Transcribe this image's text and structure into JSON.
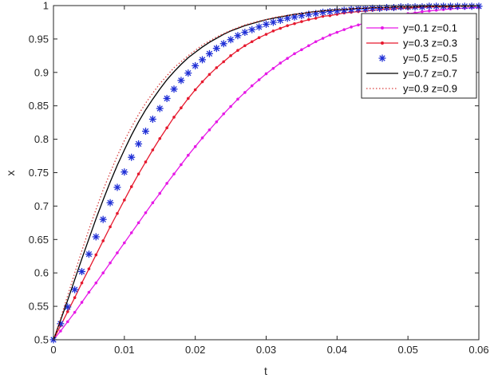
{
  "chart_data": {
    "type": "line",
    "xlabel": "t",
    "ylabel": "x",
    "xlim": [
      0,
      0.06
    ],
    "ylim": [
      0.5,
      1
    ],
    "xticks": [
      0,
      0.01,
      0.02,
      0.03,
      0.04,
      0.05,
      0.06
    ],
    "xtick_labels": [
      "0",
      "0.01",
      "0.02",
      "0.03",
      "0.04",
      "0.05",
      "0.06"
    ],
    "yticks": [
      0.5,
      0.55,
      0.6,
      0.65,
      0.7,
      0.75,
      0.8,
      0.85,
      0.9,
      0.95,
      1
    ],
    "ytick_labels": [
      "0.5",
      "0.55",
      "0.6",
      "0.65",
      "0.7",
      "0.75",
      "0.8",
      "0.85",
      "0.9",
      "0.95",
      "1"
    ],
    "grid": false,
    "legend_position": "top-right",
    "sample_x": [
      0,
      0.001,
      0.002,
      0.003,
      0.004,
      0.005,
      0.006,
      0.007,
      0.008,
      0.009,
      0.01,
      0.011,
      0.012,
      0.013,
      0.014,
      0.015,
      0.016,
      0.017,
      0.018,
      0.019,
      0.02,
      0.021,
      0.022,
      0.023,
      0.024,
      0.025,
      0.026,
      0.027,
      0.028,
      0.029,
      0.03,
      0.031,
      0.032,
      0.033,
      0.034,
      0.035,
      0.036,
      0.037,
      0.038,
      0.039,
      0.04,
      0.041,
      0.042,
      0.043,
      0.044,
      0.045,
      0.046,
      0.047,
      0.048,
      0.049,
      0.05,
      0.051,
      0.052,
      0.053,
      0.054,
      0.055,
      0.056,
      0.057,
      0.058,
      0.059,
      0.06
    ],
    "series": [
      {
        "name": "y=0.1 z=0.1",
        "color": "#e619e6",
        "style": "line-dot",
        "x": [
          0,
          0.001,
          0.002,
          0.003,
          0.004,
          0.005,
          0.006,
          0.007,
          0.008,
          0.009,
          0.01,
          0.011,
          0.012,
          0.013,
          0.014,
          0.015,
          0.016,
          0.017,
          0.018,
          0.019,
          0.02,
          0.021,
          0.022,
          0.023,
          0.024,
          0.025,
          0.026,
          0.027,
          0.028,
          0.029,
          0.03,
          0.031,
          0.032,
          0.033,
          0.034,
          0.035,
          0.036,
          0.037,
          0.038,
          0.039,
          0.04,
          0.041,
          0.042,
          0.043,
          0.044,
          0.045,
          0.046,
          0.047,
          0.048,
          0.049,
          0.05,
          0.051,
          0.052,
          0.053,
          0.054,
          0.055,
          0.056,
          0.057,
          0.058,
          0.059,
          0.06
        ],
        "values": [
          0.5,
          0.513,
          0.527,
          0.541,
          0.556,
          0.571,
          0.585,
          0.6,
          0.615,
          0.63,
          0.645,
          0.66,
          0.675,
          0.69,
          0.705,
          0.719,
          0.734,
          0.748,
          0.762,
          0.776,
          0.789,
          0.802,
          0.814,
          0.826,
          0.838,
          0.849,
          0.86,
          0.87,
          0.88,
          0.889,
          0.898,
          0.906,
          0.914,
          0.921,
          0.928,
          0.934,
          0.94,
          0.946,
          0.951,
          0.956,
          0.96,
          0.964,
          0.968,
          0.971,
          0.974,
          0.977,
          0.98,
          0.982,
          0.984,
          0.986,
          0.988,
          0.989,
          0.991,
          0.992,
          0.993,
          0.994,
          0.995,
          0.996,
          0.996,
          0.997,
          0.997
        ]
      },
      {
        "name": "y=0.3 z=0.3",
        "color": "#e6192e",
        "style": "line-dot",
        "x": [
          0,
          0.001,
          0.002,
          0.003,
          0.004,
          0.005,
          0.006,
          0.007,
          0.008,
          0.009,
          0.01,
          0.011,
          0.012,
          0.013,
          0.014,
          0.015,
          0.016,
          0.017,
          0.018,
          0.019,
          0.02,
          0.021,
          0.022,
          0.023,
          0.024,
          0.025,
          0.026,
          0.027,
          0.028,
          0.029,
          0.03,
          0.031,
          0.032,
          0.033,
          0.034,
          0.035,
          0.036,
          0.037,
          0.038,
          0.039,
          0.04,
          0.041,
          0.042,
          0.043,
          0.044,
          0.045,
          0.046,
          0.047,
          0.048,
          0.049,
          0.05,
          0.051,
          0.052,
          0.053,
          0.054,
          0.055,
          0.056,
          0.057,
          0.058,
          0.059,
          0.06
        ],
        "values": [
          0.5,
          0.521,
          0.542,
          0.563,
          0.585,
          0.606,
          0.627,
          0.648,
          0.669,
          0.689,
          0.709,
          0.729,
          0.748,
          0.766,
          0.784,
          0.801,
          0.817,
          0.833,
          0.847,
          0.861,
          0.874,
          0.886,
          0.897,
          0.907,
          0.916,
          0.925,
          0.933,
          0.94,
          0.946,
          0.952,
          0.957,
          0.962,
          0.966,
          0.97,
          0.973,
          0.976,
          0.979,
          0.981,
          0.984,
          0.985,
          0.987,
          0.989,
          0.99,
          0.991,
          0.992,
          0.993,
          0.994,
          0.995,
          0.995,
          0.996,
          0.996,
          0.997,
          0.997,
          0.998,
          0.998,
          0.998,
          0.998,
          0.999,
          0.999,
          0.999,
          0.999
        ]
      },
      {
        "name": "y=0.5 z=0.5",
        "color": "#1f2fd6",
        "style": "star",
        "x": [
          0,
          0.001,
          0.002,
          0.003,
          0.004,
          0.005,
          0.006,
          0.007,
          0.008,
          0.009,
          0.01,
          0.011,
          0.012,
          0.013,
          0.014,
          0.015,
          0.016,
          0.017,
          0.018,
          0.019,
          0.02,
          0.021,
          0.022,
          0.023,
          0.024,
          0.025,
          0.026,
          0.027,
          0.028,
          0.029,
          0.03,
          0.031,
          0.032,
          0.033,
          0.034,
          0.035,
          0.036,
          0.037,
          0.038,
          0.039,
          0.04,
          0.041,
          0.042,
          0.043,
          0.044,
          0.045,
          0.046,
          0.047,
          0.048,
          0.049,
          0.05,
          0.051,
          0.052,
          0.053,
          0.054,
          0.055,
          0.056,
          0.057,
          0.058,
          0.059,
          0.06
        ],
        "values": [
          0.5,
          0.524,
          0.549,
          0.575,
          0.602,
          0.628,
          0.654,
          0.68,
          0.705,
          0.728,
          0.751,
          0.773,
          0.793,
          0.812,
          0.83,
          0.846,
          0.861,
          0.875,
          0.888,
          0.899,
          0.91,
          0.919,
          0.928,
          0.936,
          0.943,
          0.949,
          0.955,
          0.96,
          0.964,
          0.968,
          0.972,
          0.975,
          0.978,
          0.981,
          0.983,
          0.985,
          0.987,
          0.988,
          0.99,
          0.991,
          0.992,
          0.993,
          0.994,
          0.995,
          0.995,
          0.996,
          0.996,
          0.997,
          0.997,
          0.998,
          0.998,
          0.998,
          0.998,
          0.999,
          0.999,
          0.999,
          0.999,
          0.999,
          0.999,
          0.999,
          0.999
        ]
      },
      {
        "name": "y=0.7 z=0.7",
        "color": "#000000",
        "style": "line",
        "x": [
          0,
          0.001,
          0.002,
          0.003,
          0.004,
          0.005,
          0.006,
          0.007,
          0.008,
          0.009,
          0.01,
          0.011,
          0.012,
          0.013,
          0.014,
          0.015,
          0.016,
          0.017,
          0.018,
          0.019,
          0.02,
          0.021,
          0.022,
          0.023,
          0.024,
          0.025,
          0.026,
          0.027,
          0.028,
          0.029,
          0.03,
          0.031,
          0.032,
          0.033,
          0.034,
          0.035,
          0.036,
          0.037,
          0.038,
          0.039,
          0.04,
          0.041,
          0.042,
          0.043,
          0.044,
          0.045,
          0.046,
          0.047,
          0.048,
          0.049,
          0.05,
          0.051,
          0.052,
          0.053,
          0.054,
          0.055,
          0.056,
          0.057,
          0.058,
          0.059,
          0.06
        ],
        "values": [
          0.5,
          0.529,
          0.559,
          0.59,
          0.621,
          0.651,
          0.681,
          0.709,
          0.736,
          0.761,
          0.784,
          0.806,
          0.826,
          0.844,
          0.86,
          0.875,
          0.889,
          0.901,
          0.912,
          0.922,
          0.93,
          0.938,
          0.945,
          0.951,
          0.957,
          0.962,
          0.966,
          0.97,
          0.973,
          0.976,
          0.979,
          0.981,
          0.983,
          0.985,
          0.987,
          0.988,
          0.99,
          0.991,
          0.992,
          0.993,
          0.994,
          0.994,
          0.995,
          0.996,
          0.996,
          0.997,
          0.997,
          0.997,
          0.998,
          0.998,
          0.998,
          0.998,
          0.999,
          0.999,
          0.999,
          0.999,
          0.999,
          0.999,
          0.999,
          0.999,
          1.0
        ]
      },
      {
        "name": "y=0.9 z=0.9",
        "color": "#d9403f",
        "style": "dotted",
        "x": [
          0,
          0.001,
          0.002,
          0.003,
          0.004,
          0.005,
          0.006,
          0.007,
          0.008,
          0.009,
          0.01,
          0.011,
          0.012,
          0.013,
          0.014,
          0.015,
          0.016,
          0.017,
          0.018,
          0.019,
          0.02,
          0.021,
          0.022,
          0.023,
          0.024,
          0.025,
          0.026,
          0.027,
          0.028,
          0.029,
          0.03,
          0.031,
          0.032,
          0.033,
          0.034,
          0.035,
          0.036,
          0.037,
          0.038,
          0.039,
          0.04,
          0.041,
          0.042,
          0.043,
          0.044,
          0.045,
          0.046,
          0.047,
          0.048,
          0.049,
          0.05,
          0.051,
          0.052,
          0.053,
          0.054,
          0.055,
          0.056,
          0.057,
          0.058,
          0.059,
          0.06
        ],
        "values": [
          0.5,
          0.532,
          0.566,
          0.6,
          0.633,
          0.665,
          0.695,
          0.724,
          0.75,
          0.775,
          0.798,
          0.818,
          0.837,
          0.854,
          0.869,
          0.883,
          0.895,
          0.907,
          0.916,
          0.925,
          0.933,
          0.941,
          0.947,
          0.953,
          0.958,
          0.963,
          0.967,
          0.971,
          0.974,
          0.977,
          0.979,
          0.982,
          0.984,
          0.985,
          0.987,
          0.988,
          0.99,
          0.991,
          0.992,
          0.993,
          0.994,
          0.994,
          0.995,
          0.996,
          0.996,
          0.997,
          0.997,
          0.997,
          0.998,
          0.998,
          0.998,
          0.998,
          0.999,
          0.999,
          0.999,
          0.999,
          0.999,
          0.999,
          0.999,
          0.999,
          1.0
        ]
      }
    ]
  }
}
